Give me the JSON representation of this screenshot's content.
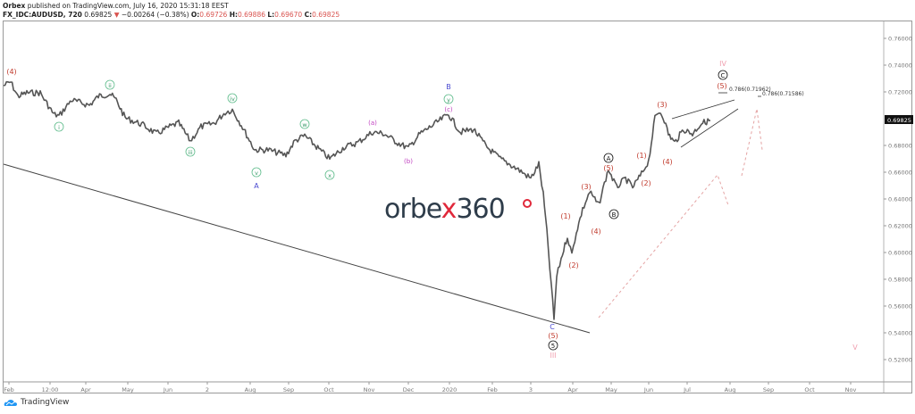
{
  "header": {
    "publisher": "Orbex",
    "published_text": " published on TradingView.com, July 16, 2020 15:31:18 EEST",
    "symbol": "FX_IDC:AUDUSD, 720",
    "last": "0.69825",
    "change": "−0.00264 (−0.38%)",
    "o_label": "O:",
    "o": "0.69726",
    "h_label": "H:",
    "h": "0.69886",
    "l_label": "L:",
    "l": "0.69670",
    "c_label": "C:",
    "c": "0.69825"
  },
  "watermark": {
    "part1": "orbe",
    "part2": "x",
    "part3": "360",
    "degree": "o"
  },
  "footer": {
    "brand": "TradingView"
  },
  "price_label": "0.69825",
  "fib_labels": [
    "0.786(0.71962)",
    "0.786(0.71586)"
  ],
  "chart_data": {
    "type": "line",
    "title": "FX_IDC:AUDUSD, 720",
    "xlabel": "",
    "ylabel": "",
    "ylim": [
      0.51,
      0.77
    ],
    "grid": false,
    "y_ticks": [
      "0.76000",
      "0.74000",
      "0.72000",
      "0.70000",
      "0.68000",
      "0.66000",
      "0.64000",
      "0.62000",
      "0.60000",
      "0.58000",
      "0.56000",
      "0.54000",
      "0.52000"
    ],
    "x_ticks": [
      "Feb",
      "12:00",
      "Apr",
      "May",
      "Jun",
      "2",
      "Aug",
      "Sep",
      "Oct",
      "Nov",
      "Dec",
      "2020",
      "Feb",
      "3",
      "Apr",
      "May",
      "Jun",
      "Jul",
      "Aug",
      "Sep",
      "Oct",
      "Nov"
    ],
    "series": [
      {
        "name": "AUDUSD",
        "x": [
          "Feb 2019",
          "Mar 2019",
          "Apr 2019",
          "May 2019",
          "Jun 2019",
          "Jul 2019",
          "Aug 2019",
          "Sep 2019",
          "Oct 2019",
          "Nov 2019",
          "Dec 2019",
          "Jan 2020",
          "Feb 2020",
          "Mar 2020",
          "Mar 2020 low",
          "Apr 2020",
          "May 2020",
          "Jun 2020",
          "Jul 2020"
        ],
        "values": [
          0.724,
          0.706,
          0.716,
          0.694,
          0.686,
          0.704,
          0.676,
          0.689,
          0.672,
          0.693,
          0.681,
          0.703,
          0.67,
          0.668,
          0.551,
          0.635,
          0.658,
          0.7,
          0.698
        ]
      }
    ],
    "last_price": 0.69825,
    "annotations": [
      "(4)",
      "i",
      "ii",
      "iii",
      "iv",
      "v",
      "A",
      "w",
      "x",
      "(a)",
      "(b)",
      "(c)",
      "y",
      "B",
      "C",
      "(5)",
      "5",
      "III",
      "(1)",
      "(2)",
      "(3)",
      "(4)",
      "(5)",
      "A",
      "B",
      "(1)",
      "(2)",
      "(3)",
      "(4)",
      "(5)",
      "C",
      "IV",
      "V",
      "0.786(0.71962)",
      "0.786(0.71586)"
    ]
  }
}
